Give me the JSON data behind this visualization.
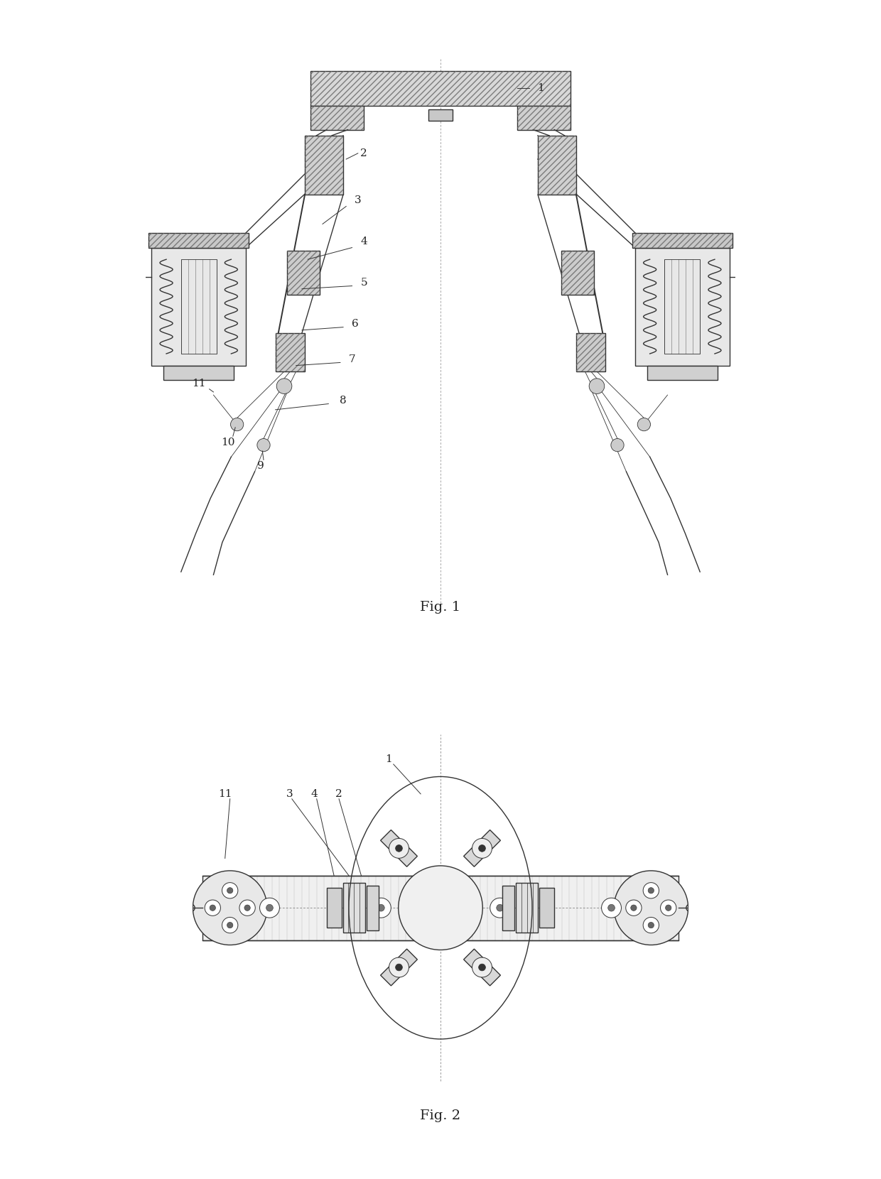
{
  "fig1_title": "Fig. 1",
  "fig2_title": "Fig. 2",
  "bg_color": "#ffffff",
  "line_color": "#333333",
  "label_color": "#222222",
  "lw_main": 1.0,
  "lw_thin": 0.6,
  "lw_thick": 1.4,
  "fs_label": 11
}
